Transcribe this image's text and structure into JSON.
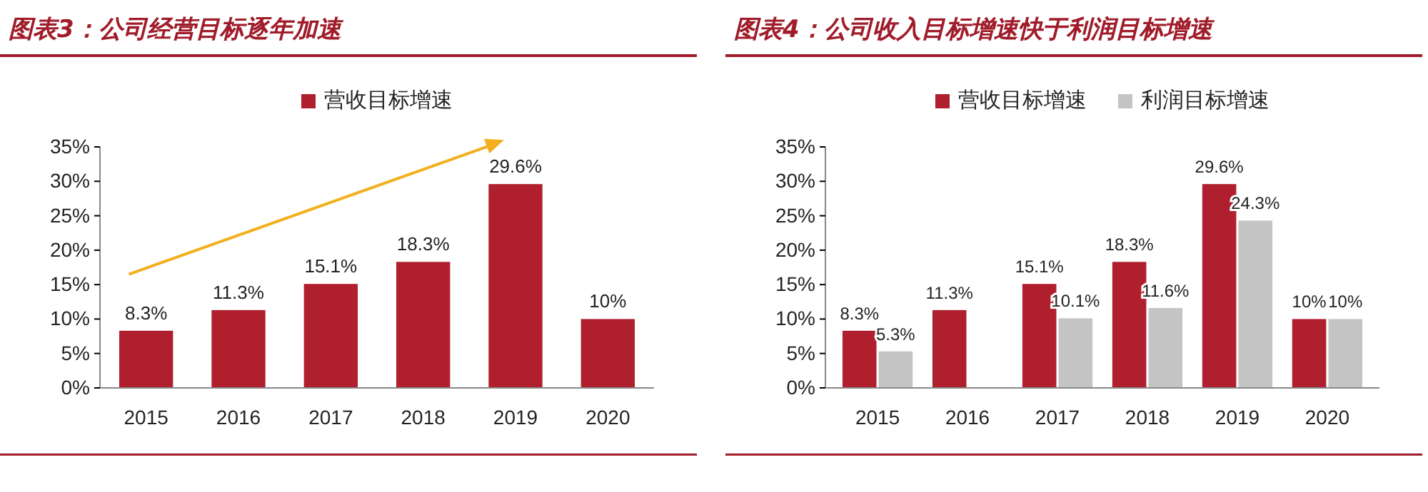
{
  "chart_data": [
    {
      "type": "bar",
      "title": "图表3：公司经营目标逐年加速",
      "categories": [
        "2015",
        "2016",
        "2017",
        "2018",
        "2019",
        "2020"
      ],
      "series": [
        {
          "name": "营收目标增速",
          "color": "#b01f2e",
          "values": [
            8.3,
            11.3,
            15.1,
            18.3,
            29.6,
            10
          ],
          "value_labels": [
            "8.3%",
            "11.3%",
            "15.1%",
            "18.3%",
            "29.6%",
            "10%"
          ]
        }
      ],
      "ylim": [
        0,
        35
      ],
      "yticks": [
        {
          "value": 0,
          "label": "0%"
        },
        {
          "value": 5,
          "label": "5%"
        },
        {
          "value": 10,
          "label": "10%"
        },
        {
          "value": 15,
          "label": "15%"
        },
        {
          "value": 20,
          "label": "20%"
        },
        {
          "value": 25,
          "label": "25%"
        },
        {
          "value": 30,
          "label": "30%"
        },
        {
          "value": 35,
          "label": "35%"
        }
      ],
      "grid": false,
      "legend": "top"
    },
    {
      "type": "bar",
      "title": "图表4：公司收入目标增速快于利润目标增速",
      "categories": [
        "2015",
        "2016",
        "2017",
        "2018",
        "2019",
        "2020"
      ],
      "series": [
        {
          "name": "营收目标增速",
          "color": "#b01f2e",
          "values": [
            8.3,
            11.3,
            15.1,
            18.3,
            29.6,
            10
          ],
          "value_labels": [
            "8.3%",
            "11.3%",
            "15.1%",
            "18.3%",
            "29.6%",
            "10%"
          ]
        },
        {
          "name": "利润目标增速",
          "color": "#c4c4c4",
          "values": [
            5.3,
            null,
            10.1,
            11.6,
            24.3,
            10
          ],
          "value_labels": [
            "5.3%",
            null,
            "10.1%",
            "11.6%",
            "24.3%",
            "10%"
          ]
        }
      ],
      "ylim": [
        0,
        35
      ],
      "yticks": [
        {
          "value": 0,
          "label": "0%"
        },
        {
          "value": 5,
          "label": "5%"
        },
        {
          "value": 10,
          "label": "10%"
        },
        {
          "value": 15,
          "label": "15%"
        },
        {
          "value": 20,
          "label": "20%"
        },
        {
          "value": 25,
          "label": "25%"
        },
        {
          "value": 30,
          "label": "30%"
        },
        {
          "value": 35,
          "label": "35%"
        }
      ],
      "grid": false,
      "legend": "top"
    }
  ]
}
